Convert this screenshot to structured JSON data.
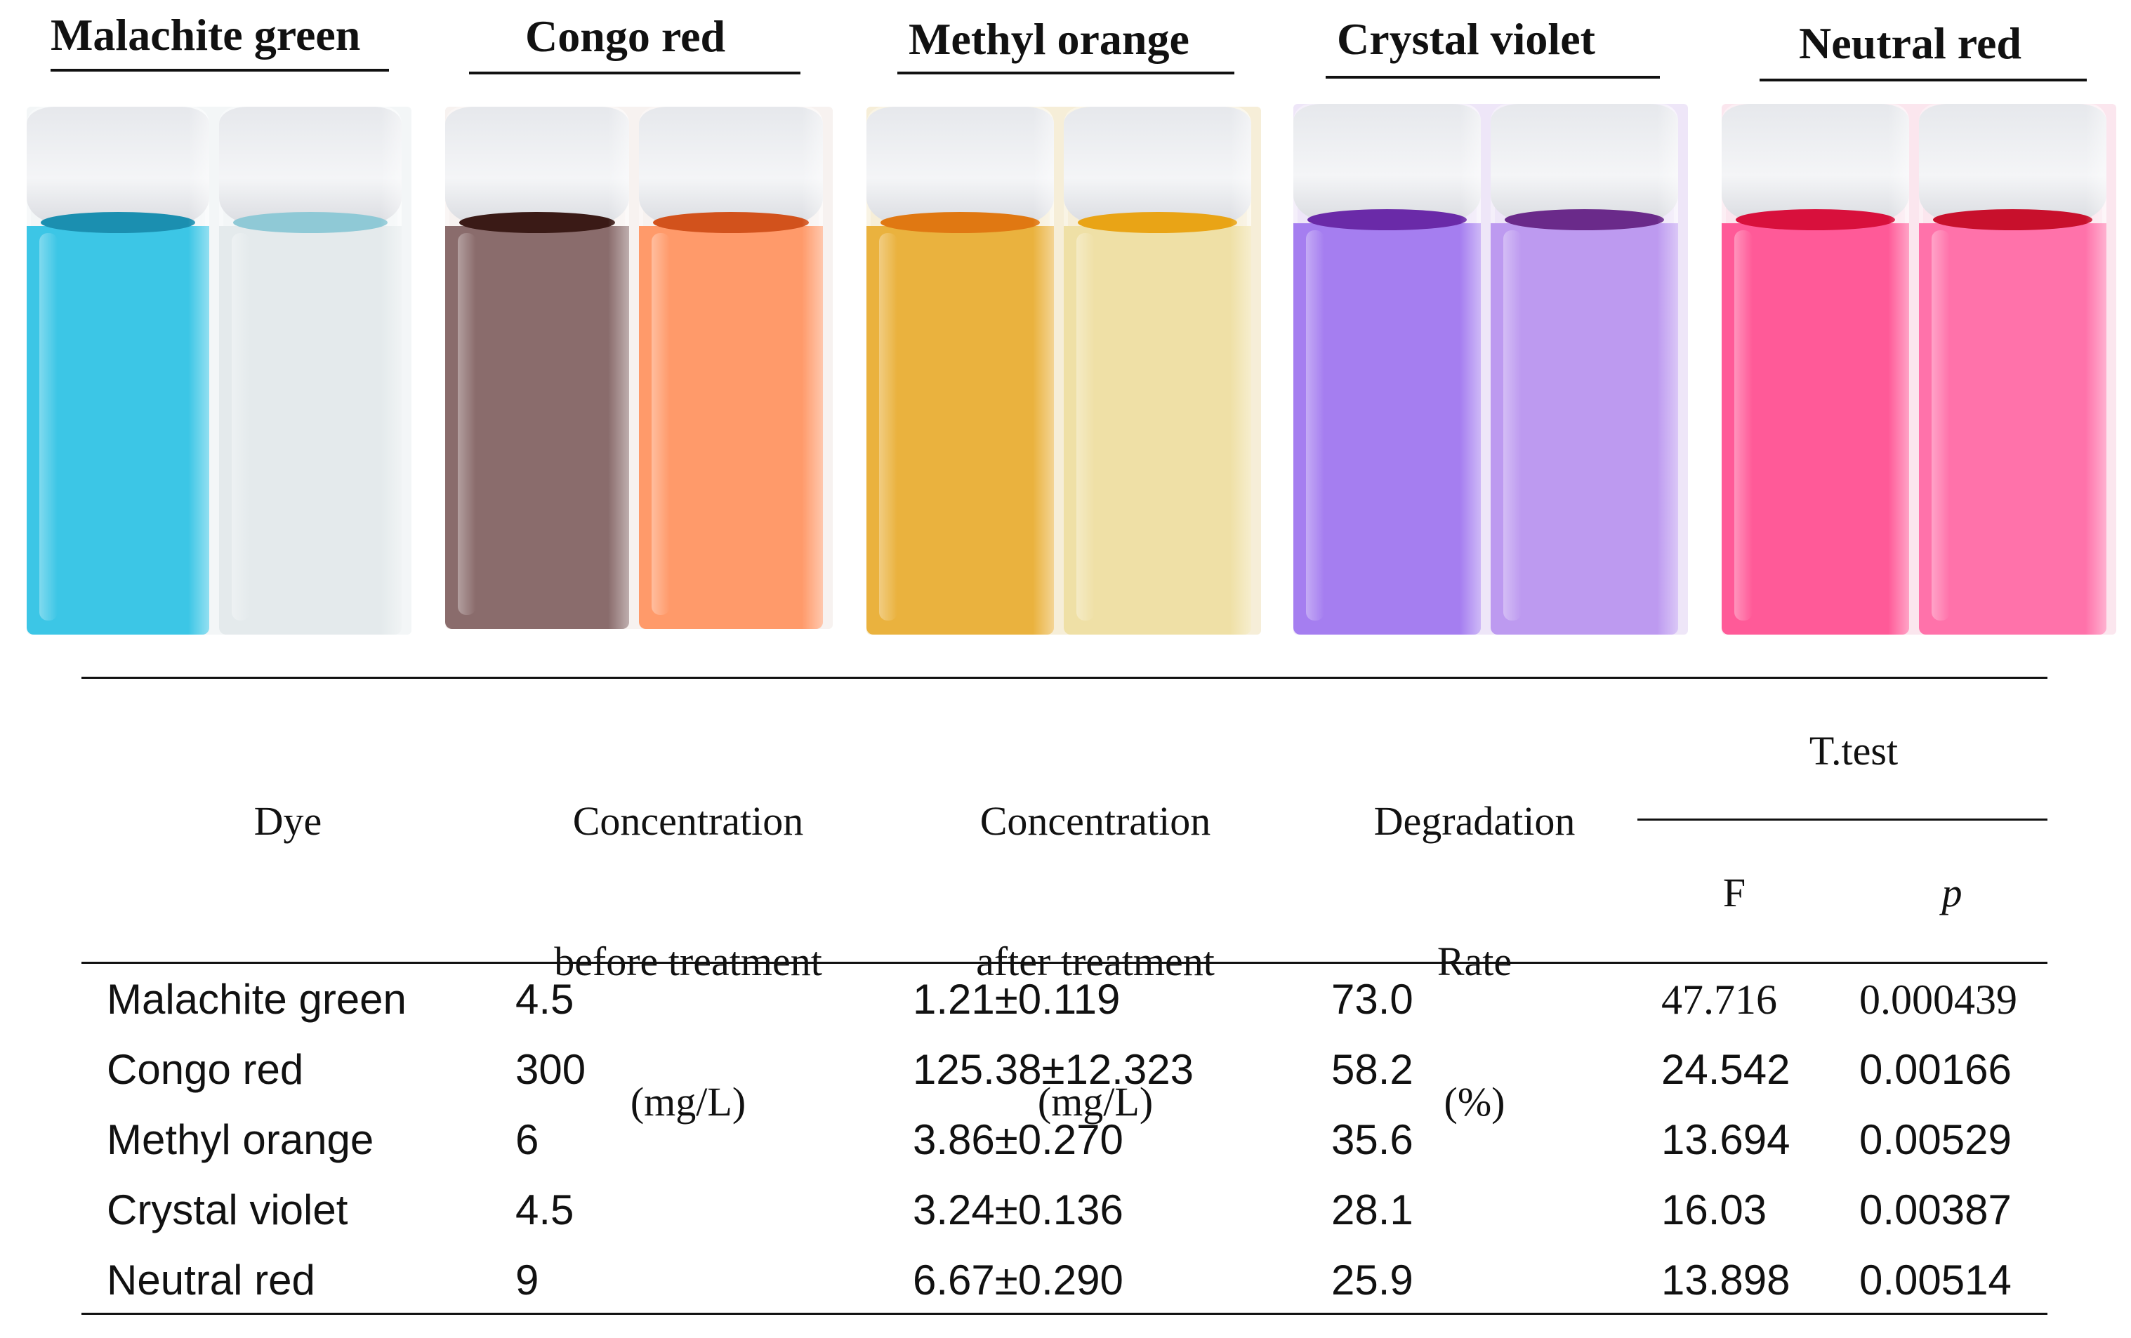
{
  "dyes": [
    {
      "name": "Malachite green",
      "before_color": "#3cc6e6",
      "after_color": "#e4eaec",
      "before_meniscus": "#1b8fb0",
      "after_meniscus": "#8fc9d6"
    },
    {
      "name": "Congo red",
      "before_color": "#8a6c6c",
      "after_color": "#ff9a6a",
      "before_meniscus": "#3a1a16",
      "after_meniscus": "#d2521c"
    },
    {
      "name": "Methyl orange",
      "before_color": "#eab23e",
      "after_color": "#efe0a6",
      "before_meniscus": "#e07812",
      "after_meniscus": "#e9a416"
    },
    {
      "name": "Crystal violet",
      "before_color": "#a57ef0",
      "after_color": "#bd9af0",
      "before_meniscus": "#6a2aa8",
      "after_meniscus": "#6a2a8a"
    },
    {
      "name": "Neutral red",
      "before_color": "#ff5a98",
      "after_color": "#ff72aa",
      "before_meniscus": "#d8103c",
      "after_meniscus": "#c8102c"
    }
  ],
  "table": {
    "headers": {
      "dye": "Dye",
      "conc_before": [
        "Concentration",
        "before treatment",
        "(mg/L)"
      ],
      "conc_after": [
        "Concentration",
        "after treatment",
        "(mg/L)"
      ],
      "degradation": [
        "Degradation",
        "Rate",
        "(%)"
      ],
      "ttest": "T.test",
      "f": "F",
      "p": "p"
    },
    "rows": [
      {
        "dye": "Malachite green",
        "before": "4.5",
        "after": "1.21±0.119",
        "rate": "73.0",
        "f": "47.716",
        "p": "0.000439"
      },
      {
        "dye": "Congo red",
        "before": "300",
        "after": "125.38±12.323",
        "rate": "58.2",
        "f": "24.542",
        "p": "0.00166"
      },
      {
        "dye": "Methyl orange",
        "before": "6",
        "after": "3.86±0.270",
        "rate": "35.6",
        "f": "13.694",
        "p": "0.00529"
      },
      {
        "dye": "Crystal violet",
        "before": "4.5",
        "after": "3.24±0.136",
        "rate": "28.1",
        "f": "16.03",
        "p": "0.00387"
      },
      {
        "dye": "Neutral red",
        "before": "9",
        "after": "6.67±0.290",
        "rate": "25.9",
        "f": "13.898",
        "p": "0.00514"
      }
    ]
  }
}
